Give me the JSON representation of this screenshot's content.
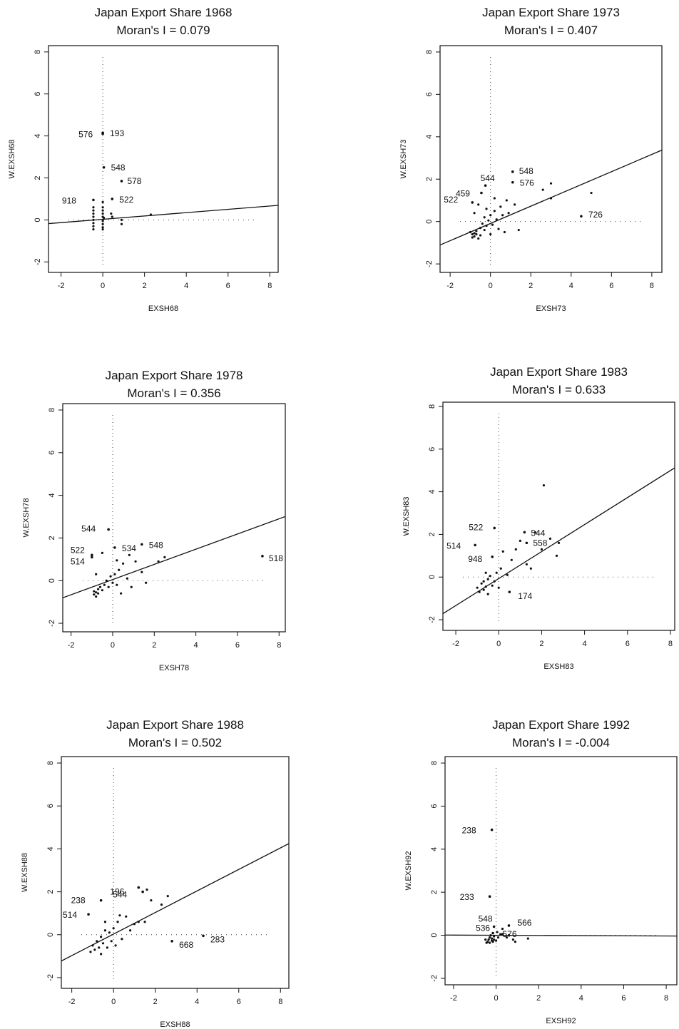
{
  "chart_data": [
    {
      "type": "scatter",
      "title": "Japan Export Share 1968",
      "subtitle": "Moran's I = 0.079",
      "xlabel": "EXSH68",
      "ylabel": "W.EXSH68",
      "xlim": [
        -2.6,
        8.4
      ],
      "ylim": [
        -2.5,
        8.3
      ],
      "xticks": [
        "-2",
        "0",
        "2",
        "4",
        "6",
        "8"
      ],
      "yticks": [
        "-2",
        "0",
        "2",
        "4",
        "6",
        "8"
      ],
      "regression": {
        "slope": 0.079,
        "intercept": 0.03
      },
      "labeled_points": [
        {
          "label": "576",
          "x": 0.0,
          "y": 4.1
        },
        {
          "label": "193",
          "x": 0.0,
          "y": 4.15
        },
        {
          "label": "548",
          "x": 0.05,
          "y": 2.5
        },
        {
          "label": "578",
          "x": 0.9,
          "y": 1.85
        },
        {
          "label": "918",
          "x": -0.45,
          "y": 0.95
        },
        {
          "label": "522",
          "x": 0.45,
          "y": 1.0
        }
      ],
      "points": [
        [
          -0.45,
          0.6
        ],
        [
          -0.45,
          0.45
        ],
        [
          -0.45,
          0.3
        ],
        [
          -0.45,
          0.15
        ],
        [
          -0.45,
          0.0
        ],
        [
          -0.45,
          -0.15
        ],
        [
          -0.45,
          -0.3
        ],
        [
          -0.45,
          -0.45
        ],
        [
          0.0,
          0.85
        ],
        [
          0.0,
          0.6
        ],
        [
          0.0,
          0.45
        ],
        [
          0.0,
          0.3
        ],
        [
          0.0,
          0.15
        ],
        [
          0.0,
          -0.05
        ],
        [
          0.0,
          -0.2
        ],
        [
          0.0,
          -0.35
        ],
        [
          0.0,
          -0.45
        ],
        [
          0.05,
          0.1
        ],
        [
          0.4,
          0.3
        ],
        [
          0.45,
          0.15
        ],
        [
          0.9,
          -0.2
        ],
        [
          0.9,
          0.0
        ],
        [
          2.3,
          0.25
        ]
      ]
    },
    {
      "type": "scatter",
      "title": "Japan Export Share 1973",
      "subtitle": "Moran's I = 0.407",
      "xlabel": "EXSH73",
      "ylabel": "W.EXSH73",
      "xlim": [
        -2.5,
        8.5
      ],
      "ylim": [
        -2.4,
        8.3
      ],
      "xticks": [
        "-2",
        "0",
        "2",
        "4",
        "6",
        "8"
      ],
      "yticks": [
        "-2",
        "0",
        "2",
        "4",
        "6",
        "8"
      ],
      "regression": {
        "slope": 0.407,
        "intercept": -0.09
      },
      "labeled_points": [
        {
          "label": "548",
          "x": 1.1,
          "y": 2.35
        },
        {
          "label": "544",
          "x": -0.25,
          "y": 1.7
        },
        {
          "label": "576",
          "x": 1.1,
          "y": 1.85
        },
        {
          "label": "459",
          "x": -0.45,
          "y": 1.35
        },
        {
          "label": "522",
          "x": -0.9,
          "y": 0.9
        },
        {
          "label": "726",
          "x": 4.5,
          "y": 0.25
        }
      ],
      "points": [
        [
          -1.0,
          -0.5
        ],
        [
          -0.9,
          -0.6
        ],
        [
          -0.9,
          -0.75
        ],
        [
          -0.8,
          -0.55
        ],
        [
          -0.8,
          -0.7
        ],
        [
          -0.7,
          -0.6
        ],
        [
          -0.7,
          -0.45
        ],
        [
          -0.6,
          -0.8
        ],
        [
          -0.5,
          -0.65
        ],
        [
          -0.5,
          -0.3
        ],
        [
          -0.4,
          -0.1
        ],
        [
          -0.3,
          0.2
        ],
        [
          -0.3,
          -0.4
        ],
        [
          -0.2,
          -0.2
        ],
        [
          -0.1,
          0.05
        ],
        [
          0.0,
          -0.6
        ],
        [
          0.0,
          0.3
        ],
        [
          0.1,
          -0.15
        ],
        [
          0.2,
          0.5
        ],
        [
          0.3,
          0.1
        ],
        [
          0.4,
          -0.35
        ],
        [
          0.5,
          0.7
        ],
        [
          0.6,
          0.3
        ],
        [
          0.7,
          -0.5
        ],
        [
          0.8,
          1.0
        ],
        [
          0.9,
          0.4
        ],
        [
          1.2,
          0.8
        ],
        [
          1.4,
          -0.4
        ],
        [
          2.6,
          1.5
        ],
        [
          3.0,
          1.8
        ],
        [
          3.0,
          1.1
        ],
        [
          5.0,
          1.35
        ],
        [
          -0.8,
          0.4
        ],
        [
          -0.6,
          0.8
        ],
        [
          0.2,
          1.1
        ],
        [
          -0.2,
          0.6
        ]
      ]
    },
    {
      "type": "scatter",
      "title": "Japan Export Share 1978",
      "subtitle": "Moran's I = 0.356",
      "xlabel": "EXSH78",
      "ylabel": "W.EXSH78",
      "xlim": [
        -2.4,
        8.3
      ],
      "ylim": [
        -2.4,
        8.3
      ],
      "xticks": [
        "-2",
        "0",
        "2",
        "4",
        "6",
        "8"
      ],
      "yticks": [
        "-2",
        "0",
        "2",
        "4",
        "6",
        "8"
      ],
      "regression": {
        "slope": 0.356,
        "intercept": 0.05
      },
      "labeled_points": [
        {
          "label": "544",
          "x": -0.2,
          "y": 2.4
        },
        {
          "label": "548",
          "x": 1.4,
          "y": 1.7
        },
        {
          "label": "534",
          "x": 0.1,
          "y": 1.55
        },
        {
          "label": "522",
          "x": -1.0,
          "y": 1.2
        },
        {
          "label": "514",
          "x": -1.0,
          "y": 1.1
        },
        {
          "label": "518",
          "x": 7.2,
          "y": 1.15
        }
      ],
      "points": [
        [
          -0.9,
          -0.5
        ],
        [
          -0.9,
          -0.65
        ],
        [
          -0.8,
          -0.75
        ],
        [
          -0.8,
          -0.55
        ],
        [
          -0.7,
          -0.4
        ],
        [
          -0.7,
          -0.6
        ],
        [
          -0.6,
          -0.3
        ],
        [
          -0.5,
          -0.45
        ],
        [
          -0.4,
          -0.2
        ],
        [
          -0.3,
          0.0
        ],
        [
          -0.2,
          -0.3
        ],
        [
          -0.1,
          0.2
        ],
        [
          0.0,
          -0.1
        ],
        [
          0.1,
          0.3
        ],
        [
          0.2,
          -0.2
        ],
        [
          0.3,
          0.5
        ],
        [
          0.4,
          -0.6
        ],
        [
          0.5,
          0.8
        ],
        [
          0.7,
          0.1
        ],
        [
          0.8,
          1.2
        ],
        [
          0.9,
          -0.3
        ],
        [
          1.1,
          0.9
        ],
        [
          1.4,
          0.4
        ],
        [
          1.6,
          -0.1
        ],
        [
          2.2,
          0.9
        ],
        [
          2.5,
          1.1
        ],
        [
          -0.5,
          1.3
        ],
        [
          0.2,
          0.95
        ],
        [
          -0.8,
          0.3
        ]
      ]
    },
    {
      "type": "scatter",
      "title": "Japan Export Share 1983",
      "subtitle": "Moran's I = 0.633",
      "xlabel": "EXSH83",
      "ylabel": "W.EXSH83",
      "xlim": [
        -2.6,
        8.2
      ],
      "ylim": [
        -2.5,
        8.2
      ],
      "xticks": [
        "-2",
        "0",
        "2",
        "4",
        "6",
        "8"
      ],
      "yticks": [
        "-2",
        "0",
        "2",
        "4",
        "6",
        "8"
      ],
      "regression": {
        "slope": 0.633,
        "intercept": -0.07
      },
      "labeled_points": [
        {
          "label": "522",
          "x": -0.2,
          "y": 2.3
        },
        {
          "label": "544",
          "x": 1.2,
          "y": 2.1
        },
        {
          "label": "514",
          "x": -1.1,
          "y": 1.5
        },
        {
          "label": "948",
          "x": -0.3,
          "y": 0.95
        },
        {
          "label": "558",
          "x": 1.3,
          "y": 1.6
        },
        {
          "label": "174",
          "x": 0.5,
          "y": -0.7
        }
      ],
      "points": [
        [
          -1.0,
          -0.5
        ],
        [
          -0.9,
          -0.7
        ],
        [
          -0.8,
          -0.3
        ],
        [
          -0.7,
          -0.6
        ],
        [
          -0.7,
          -0.2
        ],
        [
          -0.6,
          -0.45
        ],
        [
          -0.5,
          -0.1
        ],
        [
          -0.5,
          -0.8
        ],
        [
          -0.4,
          0.05
        ],
        [
          -0.3,
          -0.4
        ],
        [
          -0.2,
          -0.2
        ],
        [
          -0.1,
          0.2
        ],
        [
          0.0,
          -0.5
        ],
        [
          0.1,
          0.4
        ],
        [
          0.2,
          1.2
        ],
        [
          0.4,
          0.1
        ],
        [
          0.6,
          0.8
        ],
        [
          0.8,
          1.3
        ],
        [
          1.0,
          1.7
        ],
        [
          1.3,
          0.6
        ],
        [
          1.5,
          0.4
        ],
        [
          1.7,
          2.1
        ],
        [
          2.0,
          1.3
        ],
        [
          2.1,
          4.3
        ],
        [
          2.4,
          1.8
        ],
        [
          2.7,
          1.0
        ],
        [
          2.8,
          1.6
        ],
        [
          -0.6,
          0.2
        ]
      ]
    },
    {
      "type": "scatter",
      "title": "Japan Export Share 1988",
      "subtitle": "Moran's I = 0.502",
      "xlabel": "EXSH88",
      "ylabel": "W.EXSH88",
      "xlim": [
        -2.5,
        8.4
      ],
      "ylim": [
        -2.5,
        8.3
      ],
      "xticks": [
        "-2",
        "0",
        "2",
        "4",
        "6",
        "8"
      ],
      "yticks": [
        "-2",
        "0",
        "2",
        "4",
        "6",
        "8"
      ],
      "regression": {
        "slope": 0.502,
        "intercept": 0.03
      },
      "labeled_points": [
        {
          "label": "544",
          "x": 1.4,
          "y": 2.0
        },
        {
          "label": "196",
          "x": 1.2,
          "y": 2.2
        },
        {
          "label": "238",
          "x": -0.6,
          "y": 1.6
        },
        {
          "label": "514",
          "x": -1.2,
          "y": 0.95
        },
        {
          "label": "668",
          "x": 2.8,
          "y": -0.3
        },
        {
          "label": "283",
          "x": 4.3,
          "y": -0.05
        }
      ],
      "points": [
        [
          -1.1,
          -0.8
        ],
        [
          -1.0,
          -0.5
        ],
        [
          -0.9,
          -0.7
        ],
        [
          -0.8,
          -0.3
        ],
        [
          -0.7,
          -0.6
        ],
        [
          -0.6,
          -0.1
        ],
        [
          -0.6,
          -0.9
        ],
        [
          -0.5,
          -0.4
        ],
        [
          -0.4,
          0.2
        ],
        [
          -0.3,
          -0.6
        ],
        [
          -0.2,
          0.1
        ],
        [
          -0.1,
          -0.3
        ],
        [
          0.0,
          0.3
        ],
        [
          0.1,
          -0.5
        ],
        [
          0.2,
          0.6
        ],
        [
          0.3,
          0.9
        ],
        [
          0.4,
          -0.2
        ],
        [
          0.6,
          0.85
        ],
        [
          0.8,
          0.2
        ],
        [
          1.0,
          0.5
        ],
        [
          1.2,
          0.6
        ],
        [
          1.5,
          0.6
        ],
        [
          1.6,
          2.1
        ],
        [
          1.8,
          1.6
        ],
        [
          2.3,
          1.4
        ],
        [
          2.6,
          1.8
        ],
        [
          -0.4,
          0.6
        ]
      ]
    },
    {
      "type": "scatter",
      "title": "Japan Export Share 1992",
      "subtitle": "Moran's I = -0.004",
      "xlabel": "EXSH92",
      "ylabel": "W.EXSH92",
      "xlim": [
        -2.4,
        8.5
      ],
      "ylim": [
        -2.3,
        8.3
      ],
      "xticks": [
        "-2",
        "0",
        "2",
        "4",
        "6",
        "8"
      ],
      "yticks": [
        "-2",
        "0",
        "2",
        "4",
        "6",
        "8"
      ],
      "regression": {
        "slope": -0.004,
        "intercept": 0.0
      },
      "labeled_points": [
        {
          "label": "238",
          "x": -0.2,
          "y": 4.9
        },
        {
          "label": "233",
          "x": -0.3,
          "y": 1.8
        },
        {
          "label": "548",
          "x": -0.1,
          "y": 0.4
        },
        {
          "label": "536",
          "x": -0.15,
          "y": 0.1
        },
        {
          "label": "566",
          "x": 0.6,
          "y": 0.45
        },
        {
          "label": "576",
          "x": 0.3,
          "y": 0.05
        }
      ],
      "points": [
        [
          -0.4,
          -0.3
        ],
        [
          -0.35,
          -0.2
        ],
        [
          -0.3,
          -0.1
        ],
        [
          -0.3,
          -0.35
        ],
        [
          -0.25,
          0.0
        ],
        [
          -0.2,
          -0.25
        ],
        [
          -0.2,
          -0.15
        ],
        [
          -0.15,
          -0.3
        ],
        [
          -0.1,
          -0.05
        ],
        [
          -0.1,
          -0.2
        ],
        [
          0.0,
          -0.25
        ],
        [
          0.05,
          0.15
        ],
        [
          0.1,
          -0.1
        ],
        [
          0.2,
          0.05
        ],
        [
          0.3,
          0.3
        ],
        [
          0.5,
          -0.1
        ],
        [
          0.6,
          0.0
        ],
        [
          0.8,
          -0.2
        ],
        [
          0.9,
          -0.3
        ],
        [
          1.5,
          -0.15
        ],
        [
          -0.5,
          -0.2
        ],
        [
          -0.45,
          -0.35
        ]
      ]
    }
  ]
}
